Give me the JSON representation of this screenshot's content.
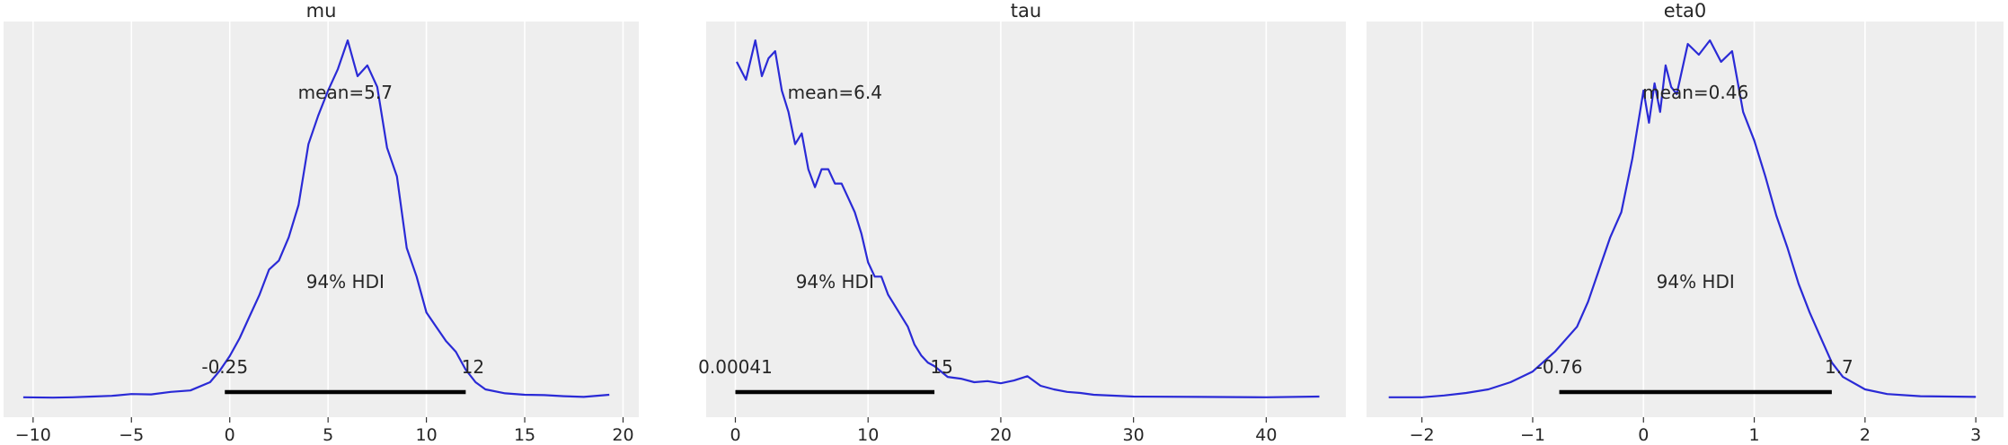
{
  "chart_data": [
    {
      "type": "area",
      "title": "mu",
      "xlabel": "",
      "ylabel": "",
      "xlim": [
        -11.5,
        20.8
      ],
      "xticks": [
        -10,
        -5,
        0,
        5,
        10,
        15,
        20
      ],
      "tick_labels": [
        "−10",
        "−5",
        "0",
        "5",
        "10",
        "15",
        "20"
      ],
      "grid": true,
      "mean_label": "mean=5.7",
      "hdi_label": "94% HDI",
      "hdi": [
        -0.25,
        12
      ],
      "hdi_low_label": "-0.25",
      "hdi_high_label": "12",
      "curve_color": "#2a2ad6",
      "density": {
        "x": [
          -10.5,
          -9,
          -8,
          -7,
          -6,
          -5,
          -4,
          -3,
          -2,
          -1,
          -0.5,
          0,
          0.5,
          1,
          1.5,
          2,
          2.5,
          3,
          3.5,
          4,
          4.5,
          5,
          5.5,
          6,
          6.5,
          7,
          7.5,
          8,
          8.5,
          9,
          9.5,
          10,
          10.5,
          11,
          11.5,
          12,
          12.5,
          13,
          14,
          15,
          16,
          17,
          18,
          19.3
        ],
        "y": [
          0.003,
          0.002,
          0.003,
          0.005,
          0.007,
          0.012,
          0.011,
          0.018,
          0.022,
          0.045,
          0.078,
          0.118,
          0.168,
          0.228,
          0.288,
          0.36,
          0.385,
          0.45,
          0.54,
          0.71,
          0.79,
          0.86,
          0.92,
          1.0,
          0.9,
          0.93,
          0.87,
          0.7,
          0.62,
          0.42,
          0.34,
          0.24,
          0.2,
          0.16,
          0.13,
          0.08,
          0.045,
          0.025,
          0.014,
          0.01,
          0.009,
          0.006,
          0.004,
          0.01
        ]
      }
    },
    {
      "type": "area",
      "title": "tau",
      "xlabel": "",
      "ylabel": "",
      "xlim": [
        -2.2,
        46
      ],
      "xticks": [
        0,
        10,
        20,
        30,
        40
      ],
      "tick_labels": [
        "0",
        "10",
        "20",
        "30",
        "40"
      ],
      "grid": true,
      "mean_label": "mean=6.4",
      "hdi_label": "94% HDI",
      "hdi": [
        0.00041,
        15
      ],
      "hdi_low_label": "0.00041",
      "hdi_high_label": "15",
      "curve_color": "#2a2ad6",
      "density": {
        "x": [
          0.1,
          0.8,
          1.5,
          2,
          2.5,
          3,
          3.5,
          4,
          4.5,
          5,
          5.5,
          6,
          6.5,
          7,
          7.5,
          8,
          8.5,
          9,
          9.5,
          10,
          10.5,
          11,
          11.5,
          12,
          12.5,
          13,
          13.5,
          14,
          14.5,
          15,
          16,
          17,
          18,
          19,
          20,
          21,
          22,
          23,
          24,
          25,
          26,
          27,
          30,
          35,
          40,
          44
        ],
        "y": [
          0.94,
          0.89,
          1.0,
          0.9,
          0.95,
          0.97,
          0.86,
          0.8,
          0.71,
          0.74,
          0.64,
          0.59,
          0.64,
          0.64,
          0.6,
          0.6,
          0.56,
          0.52,
          0.46,
          0.38,
          0.34,
          0.34,
          0.29,
          0.26,
          0.23,
          0.2,
          0.15,
          0.12,
          0.1,
          0.09,
          0.06,
          0.055,
          0.045,
          0.048,
          0.042,
          0.05,
          0.062,
          0.035,
          0.025,
          0.018,
          0.015,
          0.01,
          0.005,
          0.004,
          0.003,
          0.005
        ]
      }
    },
    {
      "type": "area",
      "title": "eta0",
      "xlabel": "",
      "ylabel": "",
      "xlim": [
        -2.5,
        3.25
      ],
      "xticks": [
        -2,
        -1,
        0,
        1,
        2,
        3
      ],
      "tick_labels": [
        "−2",
        "−1",
        "0",
        "1",
        "2",
        "3"
      ],
      "grid": true,
      "mean_label": "mean=0.46",
      "hdi_label": "94% HDI",
      "hdi": [
        -0.76,
        1.7
      ],
      "hdi_low_label": "-0.76",
      "hdi_high_label": "1.7",
      "curve_color": "#2a2ad6",
      "density": {
        "x": [
          -2.3,
          -2,
          -1.8,
          -1.6,
          -1.4,
          -1.2,
          -1.0,
          -0.8,
          -0.6,
          -0.5,
          -0.4,
          -0.3,
          -0.2,
          -0.1,
          0,
          0.05,
          0.1,
          0.15,
          0.2,
          0.25,
          0.3,
          0.4,
          0.5,
          0.6,
          0.7,
          0.8,
          0.9,
          1.0,
          1.1,
          1.2,
          1.3,
          1.4,
          1.5,
          1.6,
          1.7,
          1.8,
          2.0,
          2.2,
          2.5,
          3.0
        ],
        "y": [
          0.003,
          0.003,
          0.008,
          0.015,
          0.025,
          0.045,
          0.075,
          0.13,
          0.2,
          0.27,
          0.36,
          0.45,
          0.52,
          0.67,
          0.86,
          0.77,
          0.88,
          0.8,
          0.93,
          0.87,
          0.85,
          0.99,
          0.96,
          1.0,
          0.94,
          0.97,
          0.8,
          0.72,
          0.62,
          0.51,
          0.42,
          0.32,
          0.24,
          0.17,
          0.1,
          0.06,
          0.025,
          0.012,
          0.006,
          0.004
        ]
      }
    }
  ]
}
